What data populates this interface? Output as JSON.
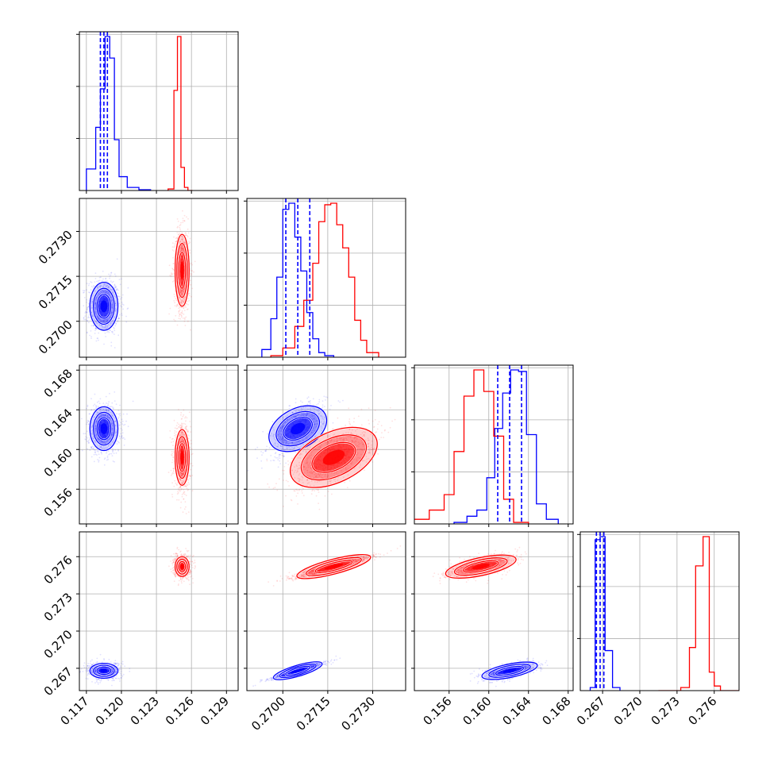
{
  "chart_data": {
    "type": "corner",
    "grid": true,
    "series": [
      {
        "color": "#0000ff",
        "means": [
          0.1185,
          0.2705,
          0.1621,
          0.2668
        ],
        "sigmas": [
          0.0006,
          0.0004,
          0.0011,
          0.0003
        ],
        "quantile_lines": [
          [
            0.1182,
            0.1185,
            0.1188
          ],
          [
            0.2701,
            0.2705,
            0.2709
          ],
          [
            0.1609,
            0.1621,
            0.1633
          ],
          [
            0.2665,
            0.2668,
            0.2671
          ]
        ],
        "hist": [
          {
            "edges": [
              0.117,
              0.1178,
              0.1182,
              0.1186,
              0.119,
              0.1194,
              0.1198,
              0.1205,
              0.1215,
              0.1225
            ],
            "counts": [
              0.14,
              0.41,
              0.66,
              1.0,
              0.86,
              0.33,
              0.09,
              0.02,
              0.005
            ]
          },
          {
            "edges": [
              0.2693,
              0.2696,
              0.2698,
              0.27,
              0.2702,
              0.2704,
              0.2706,
              0.2708,
              0.271,
              0.2712,
              0.2714,
              0.2717
            ],
            "counts": [
              0.05,
              0.25,
              0.52,
              0.96,
              1.0,
              0.78,
              0.56,
              0.29,
              0.12,
              0.03,
              0.01
            ]
          },
          {
            "edges": [
              0.1565,
              0.1578,
              0.1588,
              0.1598,
              0.1606,
              0.1614,
              0.1622,
              0.163,
              0.1638,
              0.1648,
              0.1658,
              0.167
            ],
            "counts": [
              0.01,
              0.05,
              0.09,
              0.3,
              0.62,
              0.85,
              1.0,
              0.99,
              0.58,
              0.13,
              0.03
            ]
          },
          {
            "edges": [
              0.266,
              0.2664,
              0.2668,
              0.2672,
              0.2678,
              0.2684
            ],
            "counts": [
              0.02,
              0.98,
              1.0,
              0.26,
              0.02
            ]
          }
        ]
      },
      {
        "color": "#ff0000",
        "means": [
          0.1252,
          0.2717,
          0.1592,
          0.2752
        ],
        "sigmas": [
          0.0003,
          0.0006,
          0.0014,
          0.0004
        ],
        "quantile_lines": [],
        "hist": [
          {
            "edges": [
              0.124,
              0.1245,
              0.1248,
              0.1251,
              0.1254,
              0.1257,
              0.1261
            ],
            "counts": [
              0.01,
              0.65,
              1.0,
              0.15,
              0.02,
              0.0
            ]
          },
          {
            "edges": [
              0.2696,
              0.27,
              0.2704,
              0.2707,
              0.271,
              0.2712,
              0.2714,
              0.2716,
              0.2718,
              0.272,
              0.2722,
              0.2724,
              0.2726,
              0.2728,
              0.2732
            ],
            "counts": [
              0.01,
              0.06,
              0.2,
              0.37,
              0.61,
              0.88,
              0.99,
              1.0,
              0.86,
              0.71,
              0.52,
              0.24,
              0.11,
              0.03
            ]
          },
          {
            "edges": [
              0.152,
              0.154,
              0.1555,
              0.1565,
              0.1575,
              0.1585,
              0.1595,
              0.1605,
              0.1615,
              0.1625,
              0.164
            ],
            "counts": [
              0.03,
              0.09,
              0.19,
              0.47,
              0.83,
              1.0,
              0.86,
              0.57,
              0.16,
              0.01
            ]
          },
          {
            "edges": [
              0.2715,
              0.2733,
              0.274,
              0.2745,
              0.2751,
              0.2756,
              0.276,
              0.2765,
              0.278
            ],
            "counts": [
              0.0,
              0.02,
              0.28,
              0.81,
              1.0,
              0.12,
              0.03,
              0.0
            ]
          }
        ]
      }
    ],
    "correlations": {
      "0-1": 0.0,
      "0-2": 0.0,
      "0-3": 0.0,
      "1-2": 0.6,
      "1-3": 0.95,
      "2-3": 0.6
    },
    "ranges": [
      [
        0.1164,
        0.13
      ],
      [
        0.2688,
        0.2741
      ],
      [
        0.1525,
        0.1685
      ],
      [
        0.2652,
        0.278
      ]
    ],
    "ticks": [
      {
        "values": [
          0.117,
          0.12,
          0.123,
          0.126,
          0.129
        ],
        "labels": [
          "0.117",
          "0.120",
          "0.123",
          "0.126",
          "0.129"
        ]
      },
      {
        "values": [
          0.27,
          0.2715,
          0.273
        ],
        "labels": [
          "0.2700",
          "0.2715",
          "0.2730"
        ]
      },
      {
        "values": [
          0.156,
          0.16,
          0.164,
          0.168
        ],
        "labels": [
          "0.156",
          "0.160",
          "0.164",
          "0.168"
        ]
      },
      {
        "values": [
          0.267,
          0.27,
          0.273,
          0.276
        ],
        "labels": [
          "0.267",
          "0.270",
          "0.273",
          "0.276"
        ]
      }
    ]
  }
}
